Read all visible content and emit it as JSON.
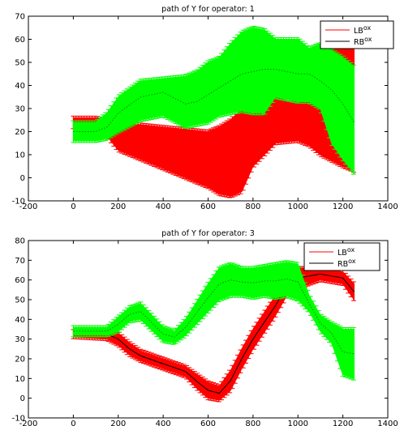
{
  "chart_data": [
    {
      "type": "line",
      "title": "path of Y for operator: 1",
      "xlabel": "",
      "ylabel": "",
      "xlim": [
        -200,
        1400
      ],
      "ylim": [
        -10,
        70
      ],
      "xticks": [
        -200,
        0,
        200,
        400,
        600,
        800,
        1000,
        1200,
        1400
      ],
      "yticks": [
        -10,
        0,
        10,
        20,
        30,
        40,
        50,
        60,
        70
      ],
      "grid": false,
      "legend_position": "top-right",
      "legend": [
        {
          "base": "LB",
          "sup": "ox",
          "color": "#ff0000"
        },
        {
          "base": "RB",
          "sup": "ox",
          "color": "#000000"
        }
      ],
      "series": [
        {
          "color": "#ff0000",
          "band_color": "#ff0000",
          "x": [
            0,
            100,
            150,
            200,
            300,
            400,
            500,
            600,
            650,
            700,
            750,
            800,
            900,
            1000,
            1050,
            1100,
            1200,
            1250
          ],
          "upper": [
            26,
            26,
            25,
            24,
            23,
            22,
            21,
            20,
            22,
            25,
            30,
            34,
            35,
            32,
            40,
            55,
            63,
            62
          ],
          "lower": [
            22,
            22,
            18,
            12,
            8,
            4,
            0,
            -4,
            -7,
            -8,
            -6,
            5,
            15,
            16,
            14,
            10,
            5,
            3
          ],
          "center": [
            24,
            24,
            22,
            19,
            17,
            15,
            10,
            9,
            12,
            18,
            24,
            30,
            32,
            30,
            35,
            40,
            50,
            45
          ]
        },
        {
          "color": "#00cc00",
          "band_color": "#00ff00",
          "x": [
            0,
            100,
            150,
            200,
            300,
            400,
            500,
            550,
            600,
            650,
            700,
            750,
            800,
            850,
            900,
            1000,
            1050,
            1100,
            1150,
            1200,
            1250
          ],
          "upper": [
            24,
            24,
            28,
            35,
            42,
            43,
            44,
            46,
            50,
            52,
            58,
            63,
            65,
            64,
            60,
            60,
            56,
            58,
            55,
            52,
            48
          ],
          "lower": [
            16,
            16,
            17,
            20,
            25,
            27,
            22,
            23,
            24,
            27,
            28,
            29,
            28,
            28,
            35,
            33,
            33,
            30,
            15,
            8,
            2
          ],
          "center": [
            20,
            20,
            22,
            28,
            35,
            37,
            32,
            33,
            36,
            39,
            42,
            45,
            46,
            47,
            47,
            45,
            45,
            42,
            38,
            32,
            24
          ]
        }
      ]
    },
    {
      "type": "line",
      "title": "path of Y for operator: 3",
      "xlabel": "",
      "ylabel": "",
      "xlim": [
        -200,
        1400
      ],
      "ylim": [
        -10,
        80
      ],
      "xticks": [
        -200,
        0,
        200,
        400,
        600,
        800,
        1000,
        1200,
        1400
      ],
      "yticks": [
        -10,
        0,
        10,
        20,
        30,
        40,
        50,
        60,
        70,
        80
      ],
      "grid": false,
      "legend_position": "top-right",
      "legend": [
        {
          "base": "LB",
          "sup": "ox",
          "color": "#ff0000"
        },
        {
          "base": "RB",
          "sup": "ox",
          "color": "#000000"
        }
      ],
      "series": [
        {
          "color": "#000000",
          "band_color": "#ff0000",
          "x": [
            0,
            150,
            200,
            250,
            300,
            400,
            500,
            550,
            600,
            650,
            700,
            750,
            800,
            900,
            950,
            1000,
            1100,
            1200,
            1250
          ],
          "upper": [
            34,
            34,
            33,
            28,
            24,
            20,
            16,
            12,
            8,
            6,
            14,
            25,
            35,
            52,
            62,
            66,
            66,
            64,
            58
          ],
          "lower": [
            31,
            30,
            27,
            22,
            19,
            15,
            11,
            5,
            0,
            -1,
            4,
            15,
            25,
            42,
            52,
            56,
            60,
            58,
            50
          ],
          "center": [
            32.5,
            32.5,
            30,
            25,
            21.5,
            17.5,
            13.5,
            8.5,
            4,
            2.5,
            9,
            20,
            30,
            47,
            57,
            61,
            63,
            61,
            54
          ]
        },
        {
          "color": "#00cc00",
          "band_color": "#00ff00",
          "x": [
            0,
            150,
            200,
            250,
            300,
            400,
            450,
            500,
            600,
            650,
            700,
            750,
            800,
            850,
            900,
            950,
            1000,
            1050,
            1100,
            1150,
            1200,
            1250
          ],
          "upper": [
            36,
            36,
            41,
            46,
            48,
            36,
            34,
            40,
            58,
            66,
            68,
            66,
            66,
            67,
            68,
            69,
            68,
            52,
            42,
            38,
            35,
            35
          ],
          "lower": [
            32,
            32,
            34,
            39,
            40,
            29,
            28,
            32,
            44,
            50,
            52,
            52,
            51,
            52,
            51,
            52,
            50,
            44,
            34,
            28,
            12,
            10
          ],
          "center": [
            34,
            34,
            37.5,
            42.5,
            44,
            32.5,
            31,
            36,
            51,
            58,
            60,
            59,
            58.5,
            59.5,
            59.5,
            60.5,
            59,
            48,
            38,
            33,
            23.5,
            22.5
          ]
        }
      ]
    }
  ]
}
